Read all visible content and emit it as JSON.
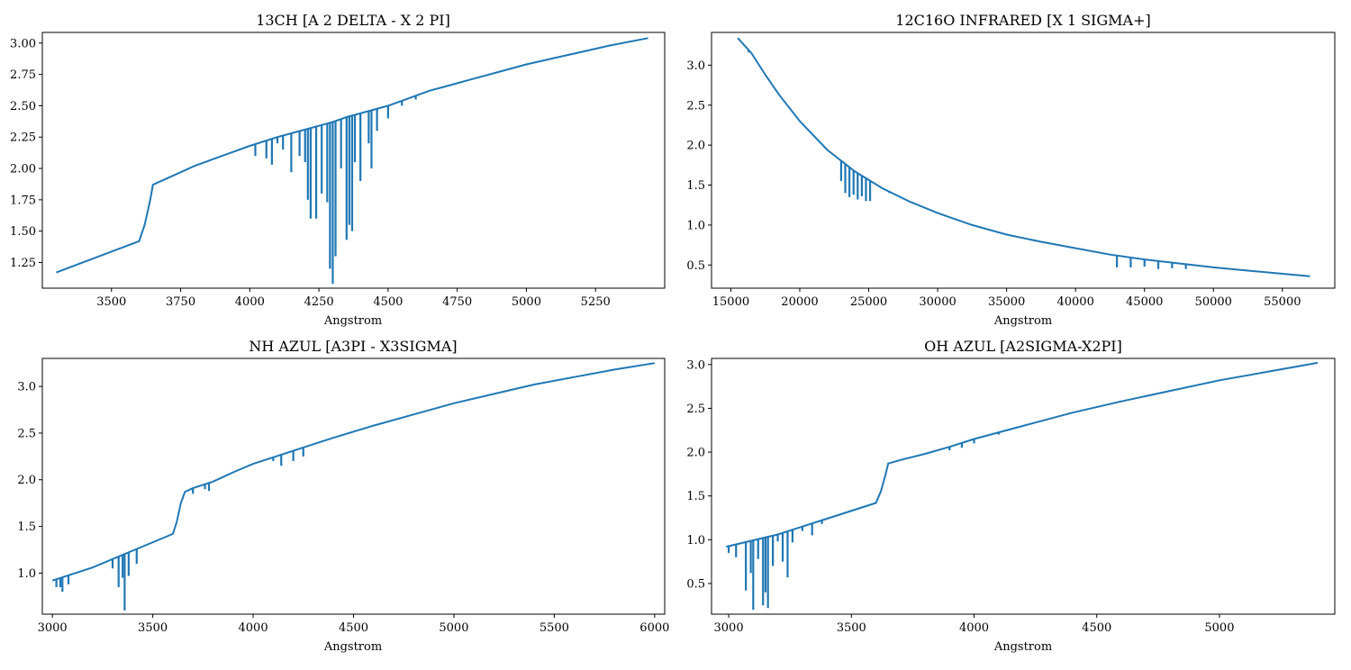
{
  "figure": {
    "background": "#ffffff",
    "line_color": "#1f77b4"
  },
  "chart_data": [
    {
      "type": "line",
      "title": "13CH [A 2 DELTA - X 2 PI]",
      "xlabel": "Angstrom",
      "ylabel": "",
      "xlim": [
        3250,
        5500
      ],
      "ylim": [
        1.045,
        3.085
      ],
      "xticks": [
        3500,
        3750,
        4000,
        4250,
        4500,
        4750,
        5000,
        5250
      ],
      "yticks": [
        1.25,
        1.5,
        1.75,
        2.0,
        2.25,
        2.5,
        2.75,
        3.0
      ],
      "xtick_labels": [
        "3500",
        "3750",
        "4000",
        "4250",
        "4500",
        "4750",
        "5000",
        "5250"
      ],
      "ytick_labels": [
        "1.25",
        "1.50",
        "1.75",
        "2.00",
        "2.25",
        "2.50",
        "2.75",
        "3.00"
      ],
      "grid": false,
      "series": [
        {
          "color": "#1f77b4",
          "x": [
            3300,
            3600,
            3620,
            3640,
            3650,
            3700,
            3800,
            3900,
            4000,
            4100,
            4200,
            4250,
            4300,
            4350,
            4400,
            4450,
            4500,
            4550,
            4600,
            4650,
            4700,
            4800,
            4900,
            5000,
            5100,
            5200,
            5300,
            5440
          ],
          "y": [
            1.17,
            1.42,
            1.55,
            1.75,
            1.87,
            1.92,
            2.02,
            2.1,
            2.18,
            2.25,
            2.31,
            2.34,
            2.37,
            2.41,
            2.44,
            2.47,
            2.5,
            2.54,
            2.58,
            2.62,
            2.65,
            2.71,
            2.77,
            2.83,
            2.88,
            2.93,
            2.98,
            3.04
          ],
          "absorption_lines": [
            {
              "x": 4020,
              "min": 2.1
            },
            {
              "x": 4060,
              "min": 2.08
            },
            {
              "x": 4080,
              "min": 2.03
            },
            {
              "x": 4100,
              "min": 2.2
            },
            {
              "x": 4120,
              "min": 2.15
            },
            {
              "x": 4150,
              "min": 1.97
            },
            {
              "x": 4180,
              "min": 2.1
            },
            {
              "x": 4200,
              "min": 2.05
            },
            {
              "x": 4210,
              "min": 1.75
            },
            {
              "x": 4220,
              "min": 1.6
            },
            {
              "x": 4240,
              "min": 1.6
            },
            {
              "x": 4260,
              "min": 1.8
            },
            {
              "x": 4280,
              "min": 1.73
            },
            {
              "x": 4290,
              "min": 1.2
            },
            {
              "x": 4300,
              "min": 1.08
            },
            {
              "x": 4310,
              "min": 1.3
            },
            {
              "x": 4330,
              "min": 2.0
            },
            {
              "x": 4350,
              "min": 1.43
            },
            {
              "x": 4360,
              "min": 1.55
            },
            {
              "x": 4370,
              "min": 1.5
            },
            {
              "x": 4380,
              "min": 2.05
            },
            {
              "x": 4400,
              "min": 1.9
            },
            {
              "x": 4430,
              "min": 2.2
            },
            {
              "x": 4440,
              "min": 2.0
            },
            {
              "x": 4460,
              "min": 2.3
            },
            {
              "x": 4500,
              "min": 2.4
            },
            {
              "x": 4550,
              "min": 2.5
            },
            {
              "x": 4600,
              "min": 2.55
            }
          ]
        }
      ]
    },
    {
      "type": "line",
      "title": "12C16O INFRARED  [X 1 SIGMA+]",
      "xlabel": "Angstrom",
      "ylabel": "",
      "xlim": [
        13600,
        58800
      ],
      "ylim": [
        0.21,
        3.41
      ],
      "xticks": [
        15000,
        20000,
        25000,
        30000,
        35000,
        40000,
        45000,
        50000,
        55000
      ],
      "yticks": [
        0.5,
        1.0,
        1.5,
        2.0,
        2.5,
        3.0
      ],
      "xtick_labels": [
        "15000",
        "20000",
        "25000",
        "30000",
        "35000",
        "40000",
        "45000",
        "50000",
        "55000"
      ],
      "ytick_labels": [
        "0.5",
        "1.0",
        "1.5",
        "2.0",
        "2.5",
        "3.0"
      ],
      "grid": false,
      "series": [
        {
          "color": "#1f77b4",
          "x": [
            15500,
            16500,
            17500,
            18500,
            20000,
            22000,
            24000,
            26000,
            28000,
            30000,
            32500,
            35000,
            37500,
            40000,
            42500,
            45000,
            47500,
            50000,
            52500,
            55000,
            57000
          ],
          "y": [
            3.34,
            3.15,
            2.88,
            2.63,
            2.3,
            1.94,
            1.67,
            1.46,
            1.29,
            1.15,
            1.0,
            0.88,
            0.79,
            0.71,
            0.63,
            0.57,
            0.52,
            0.47,
            0.43,
            0.39,
            0.36
          ],
          "absorption_lines": [
            {
              "x": 16300,
              "min": 3.16
            },
            {
              "x": 16600,
              "min": 3.12
            },
            {
              "x": 23000,
              "min": 1.55
            },
            {
              "x": 23300,
              "min": 1.4
            },
            {
              "x": 23600,
              "min": 1.35
            },
            {
              "x": 23900,
              "min": 1.38
            },
            {
              "x": 24200,
              "min": 1.32
            },
            {
              "x": 24500,
              "min": 1.36
            },
            {
              "x": 24800,
              "min": 1.3
            },
            {
              "x": 25100,
              "min": 1.3
            },
            {
              "x": 26500,
              "min": 1.4
            },
            {
              "x": 43000,
              "min": 0.47
            },
            {
              "x": 44000,
              "min": 0.47
            },
            {
              "x": 45000,
              "min": 0.48
            },
            {
              "x": 46000,
              "min": 0.45
            },
            {
              "x": 47000,
              "min": 0.46
            },
            {
              "x": 48000,
              "min": 0.45
            }
          ]
        }
      ]
    },
    {
      "type": "line",
      "title": "NH AZUL [A3PI - X3SIGMA]",
      "xlabel": "Angstrom",
      "ylabel": "",
      "xlim": [
        2950,
        6050
      ],
      "ylim": [
        0.56,
        3.3
      ],
      "xticks": [
        3000,
        3500,
        4000,
        4500,
        5000,
        5500,
        6000
      ],
      "yticks": [
        1.0,
        1.5,
        2.0,
        2.5,
        3.0
      ],
      "xtick_labels": [
        "3000",
        "3500",
        "4000",
        "4500",
        "5000",
        "5500",
        "6000"
      ],
      "ytick_labels": [
        "1.0",
        "1.5",
        "2.0",
        "2.5",
        "3.0"
      ],
      "grid": false,
      "series": [
        {
          "color": "#1f77b4",
          "x": [
            3000,
            3200,
            3400,
            3600,
            3620,
            3640,
            3660,
            3700,
            3800,
            3900,
            4000,
            4200,
            4400,
            4600,
            4800,
            5000,
            5200,
            5400,
            5600,
            5800,
            6000
          ],
          "y": [
            0.92,
            1.06,
            1.24,
            1.42,
            1.55,
            1.75,
            1.87,
            1.91,
            1.98,
            2.08,
            2.17,
            2.31,
            2.45,
            2.58,
            2.7,
            2.82,
            2.92,
            3.02,
            3.1,
            3.18,
            3.25
          ],
          "absorption_lines": [
            {
              "x": 3020,
              "min": 0.85
            },
            {
              "x": 3040,
              "min": 0.85
            },
            {
              "x": 3050,
              "min": 0.8
            },
            {
              "x": 3080,
              "min": 0.88
            },
            {
              "x": 3300,
              "min": 1.05
            },
            {
              "x": 3330,
              "min": 0.85
            },
            {
              "x": 3350,
              "min": 0.95
            },
            {
              "x": 3360,
              "min": 0.6
            },
            {
              "x": 3380,
              "min": 0.97
            },
            {
              "x": 3420,
              "min": 1.1
            },
            {
              "x": 3650,
              "min": 1.8
            },
            {
              "x": 3700,
              "min": 1.85
            },
            {
              "x": 3760,
              "min": 1.9
            },
            {
              "x": 3780,
              "min": 1.88
            },
            {
              "x": 4100,
              "min": 2.2
            },
            {
              "x": 4140,
              "min": 2.15
            },
            {
              "x": 4200,
              "min": 2.2
            },
            {
              "x": 4250,
              "min": 2.25
            }
          ]
        }
      ]
    },
    {
      "type": "line",
      "title": "OH AZUL [A2SIGMA-X2PI]",
      "xlabel": "Angstrom",
      "ylabel": "",
      "xlim": [
        2930,
        5470
      ],
      "ylim": [
        0.15,
        3.07
      ],
      "xticks": [
        3000,
        3500,
        4000,
        4500,
        5000
      ],
      "yticks": [
        0.5,
        1.0,
        1.5,
        2.0,
        2.5,
        3.0
      ],
      "xtick_labels": [
        "3000",
        "3500",
        "4000",
        "4500",
        "5000"
      ],
      "ytick_labels": [
        "0.5",
        "1.0",
        "1.5",
        "2.0",
        "2.5",
        "3.0"
      ],
      "grid": false,
      "series": [
        {
          "color": "#1f77b4",
          "x": [
            2990,
            3200,
            3400,
            3600,
            3620,
            3640,
            3650,
            3700,
            3800,
            3900,
            4000,
            4200,
            4400,
            4600,
            4800,
            5000,
            5200,
            5400
          ],
          "y": [
            0.92,
            1.06,
            1.24,
            1.42,
            1.55,
            1.75,
            1.87,
            1.91,
            1.98,
            2.06,
            2.15,
            2.3,
            2.45,
            2.58,
            2.7,
            2.82,
            2.92,
            3.02
          ],
          "absorption_lines": [
            {
              "x": 3000,
              "min": 0.85
            },
            {
              "x": 3030,
              "min": 0.8
            },
            {
              "x": 3070,
              "min": 0.42
            },
            {
              "x": 3090,
              "min": 0.62
            },
            {
              "x": 3100,
              "min": 0.2
            },
            {
              "x": 3120,
              "min": 0.78
            },
            {
              "x": 3140,
              "min": 0.25
            },
            {
              "x": 3150,
              "min": 0.4
            },
            {
              "x": 3160,
              "min": 0.22
            },
            {
              "x": 3180,
              "min": 0.7
            },
            {
              "x": 3200,
              "min": 0.98
            },
            {
              "x": 3220,
              "min": 0.75
            },
            {
              "x": 3240,
              "min": 0.57
            },
            {
              "x": 3260,
              "min": 0.97
            },
            {
              "x": 3300,
              "min": 1.1
            },
            {
              "x": 3340,
              "min": 1.05
            },
            {
              "x": 3380,
              "min": 1.18
            },
            {
              "x": 3900,
              "min": 2.02
            },
            {
              "x": 3950,
              "min": 2.05
            },
            {
              "x": 4000,
              "min": 2.1
            },
            {
              "x": 4100,
              "min": 2.2
            }
          ]
        }
      ]
    }
  ]
}
